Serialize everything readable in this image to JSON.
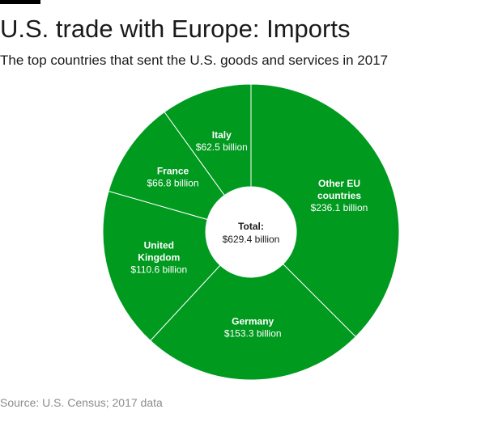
{
  "header": {
    "title": "U.S. trade with Europe: Imports",
    "subtitle": "The top countries that sent the U.S. goods and services in 2017"
  },
  "footer": {
    "source": "Source: U.S. Census; 2017 data"
  },
  "colors": {
    "slice_fill": "#009a1f",
    "slice_stroke": "#ffffff",
    "label_text": "#ffffff",
    "center_text": "#1a1a1a"
  },
  "chart_data": {
    "type": "pie",
    "style": "donut",
    "start": "12 o'clock",
    "direction": "clockwise",
    "categories": [
      "Other EU countries",
      "Germany",
      "United Kingdom",
      "France",
      "Italy"
    ],
    "values": [
      236.1,
      153.3,
      110.6,
      66.8,
      62.5
    ],
    "value_labels": [
      "$236.1 billion",
      "$153.3 billion",
      "$110.6 billion",
      "$66.8 billion",
      "$62.5 billion"
    ],
    "label_lines": [
      [
        "Other EU",
        "countries"
      ],
      [
        "Germany"
      ],
      [
        "United",
        "Kingdom"
      ],
      [
        "France"
      ],
      [
        "Italy"
      ]
    ],
    "center_label": "Total:",
    "center_value": "$629.4 billion",
    "title": "U.S. trade with Europe: Imports"
  }
}
